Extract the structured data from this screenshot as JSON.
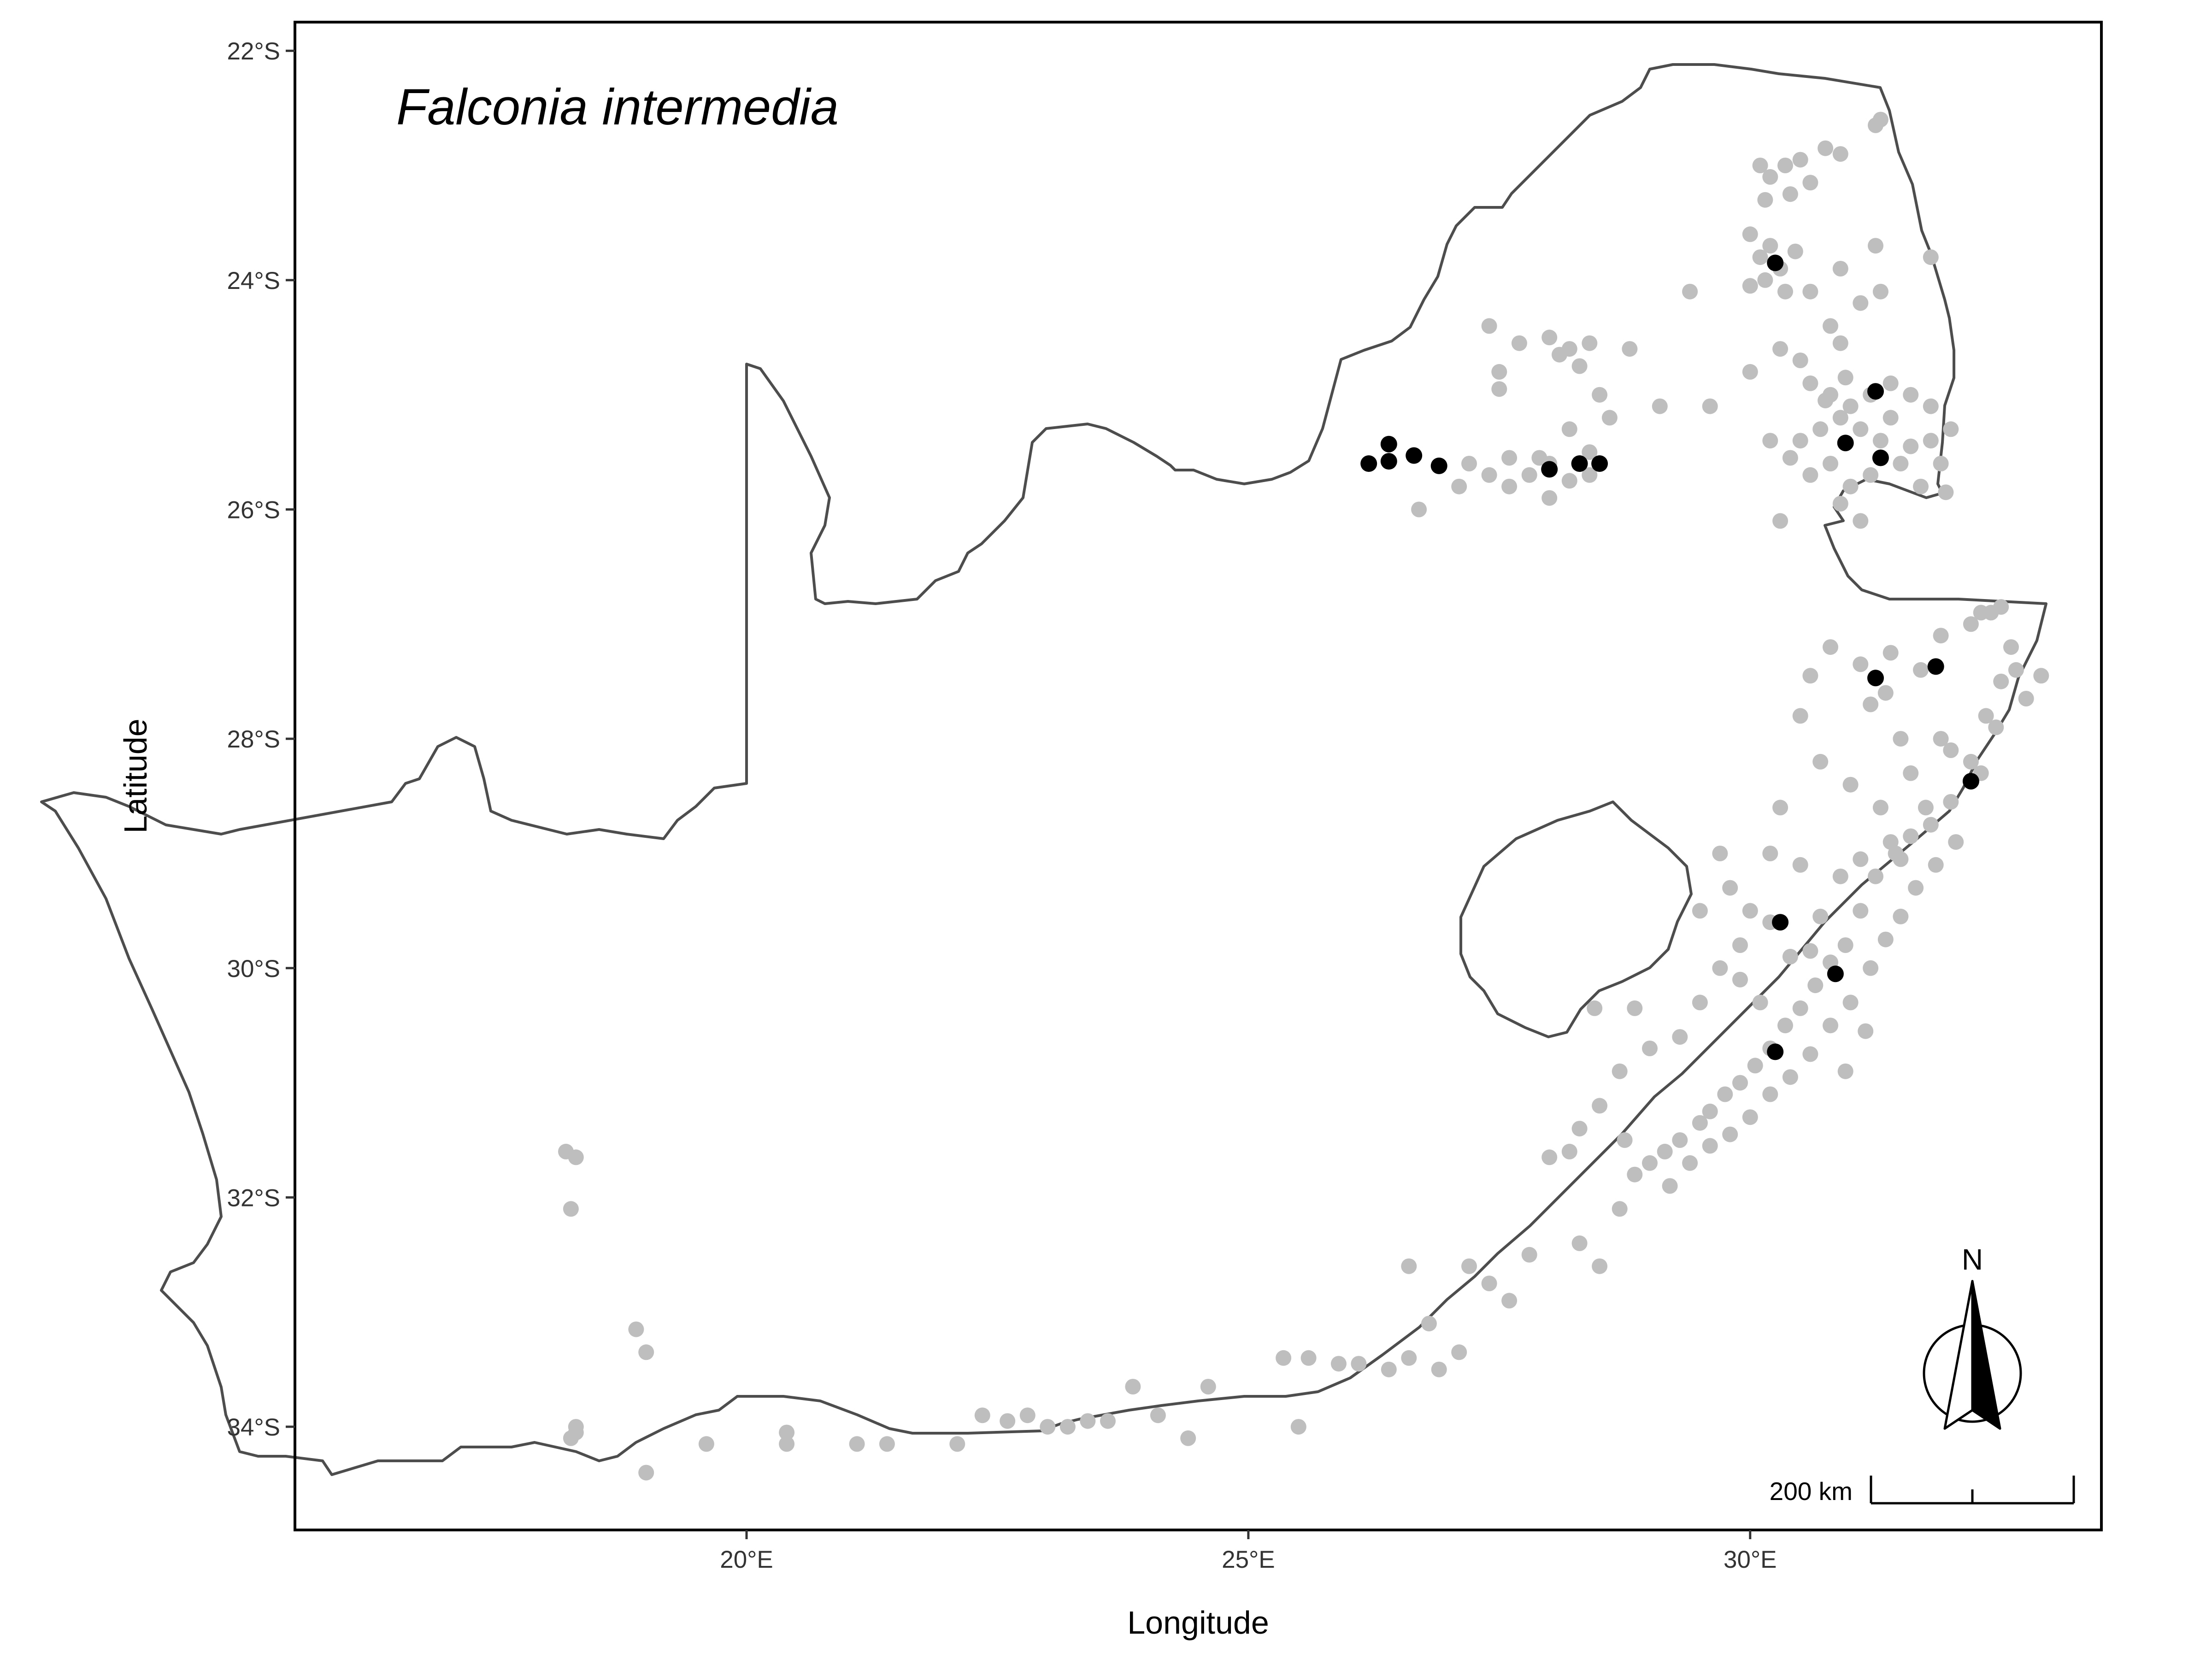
{
  "map": {
    "title": "Falconia intermedia",
    "xlabel": "Longitude",
    "ylabel": "Latitude",
    "x_ticks": [
      {
        "value": 20,
        "label": "20°E"
      },
      {
        "value": 25,
        "label": "25°E"
      },
      {
        "value": 30,
        "label": "30°E"
      }
    ],
    "y_ticks": [
      {
        "value": -22,
        "label": "22°S"
      },
      {
        "value": -24,
        "label": "24°S"
      },
      {
        "value": -26,
        "label": "26°S"
      },
      {
        "value": -28,
        "label": "28°S"
      },
      {
        "value": -30,
        "label": "30°S"
      },
      {
        "value": -32,
        "label": "32°S"
      },
      {
        "value": -34,
        "label": "34°S"
      }
    ],
    "xlim": [
      15.5,
      33.5
    ],
    "ylim": [
      -34.9,
      -21.75
    ],
    "north_arrow_label": "N",
    "scalebar_label": "200 km",
    "colors": {
      "border": "#4d4d4d",
      "background_records": "#bebebe",
      "species_records": "#000000",
      "panel_border": "#000000"
    }
  },
  "chart_data": {
    "type": "scatter",
    "title": "Falconia intermedia",
    "xlabel": "Longitude",
    "ylabel": "Latitude",
    "xlim": [
      15.5,
      33.5
    ],
    "ylim": [
      -34.9,
      -21.75
    ],
    "grid": false,
    "series": [
      {
        "color": "#bebebe",
        "points": [
          [
            18.2,
            -31.6
          ],
          [
            18.3,
            -31.65
          ],
          [
            18.25,
            -32.1
          ],
          [
            18.3,
            -34.0
          ],
          [
            18.25,
            -34.1
          ],
          [
            18.3,
            -34.05
          ],
          [
            18.9,
            -33.15
          ],
          [
            19.0,
            -33.35
          ],
          [
            19.0,
            -34.4
          ],
          [
            19.6,
            -34.15
          ],
          [
            20.4,
            -34.05
          ],
          [
            20.4,
            -34.15
          ],
          [
            21.1,
            -34.15
          ],
          [
            21.4,
            -34.15
          ],
          [
            22.1,
            -34.15
          ],
          [
            22.35,
            -33.9
          ],
          [
            22.6,
            -33.95
          ],
          [
            22.8,
            -33.9
          ],
          [
            23.0,
            -34.0
          ],
          [
            23.2,
            -34.0
          ],
          [
            23.4,
            -33.95
          ],
          [
            23.6,
            -33.95
          ],
          [
            23.85,
            -33.65
          ],
          [
            24.1,
            -33.9
          ],
          [
            24.4,
            -34.1
          ],
          [
            24.6,
            -33.65
          ],
          [
            25.35,
            -33.4
          ],
          [
            25.5,
            -34.0
          ],
          [
            25.6,
            -33.4
          ],
          [
            25.9,
            -33.45
          ],
          [
            26.1,
            -33.45
          ],
          [
            26.4,
            -33.5
          ],
          [
            26.6,
            -33.4
          ],
          [
            26.9,
            -33.5
          ],
          [
            27.1,
            -33.35
          ],
          [
            26.6,
            -32.6
          ],
          [
            26.8,
            -33.1
          ],
          [
            27.2,
            -32.6
          ],
          [
            27.4,
            -32.75
          ],
          [
            27.6,
            -32.9
          ],
          [
            27.8,
            -32.5
          ],
          [
            28.0,
            -31.65
          ],
          [
            28.2,
            -31.6
          ],
          [
            28.3,
            -32.4
          ],
          [
            28.5,
            -32.6
          ],
          [
            28.7,
            -32.1
          ],
          [
            28.85,
            -31.8
          ],
          [
            29.0,
            -31.7
          ],
          [
            29.15,
            -31.6
          ],
          [
            29.3,
            -31.5
          ],
          [
            29.5,
            -31.35
          ],
          [
            29.6,
            -31.25
          ],
          [
            29.75,
            -31.1
          ],
          [
            29.9,
            -31.0
          ],
          [
            30.05,
            -30.85
          ],
          [
            30.2,
            -30.7
          ],
          [
            30.35,
            -30.5
          ],
          [
            30.5,
            -30.35
          ],
          [
            30.65,
            -30.15
          ],
          [
            30.8,
            -29.95
          ],
          [
            30.95,
            -29.8
          ],
          [
            31.1,
            -29.5
          ],
          [
            31.25,
            -29.2
          ],
          [
            31.45,
            -29.0
          ],
          [
            31.6,
            -28.85
          ],
          [
            31.8,
            -28.75
          ],
          [
            32.0,
            -28.55
          ],
          [
            32.2,
            -28.2
          ],
          [
            32.35,
            -27.8
          ],
          [
            32.5,
            -27.5
          ],
          [
            32.6,
            -27.2
          ],
          [
            32.3,
            -26.9
          ],
          [
            31.9,
            -27.1
          ],
          [
            31.7,
            -27.4
          ],
          [
            31.35,
            -27.6
          ],
          [
            31.1,
            -27.35
          ],
          [
            30.8,
            -27.2
          ],
          [
            30.6,
            -27.45
          ],
          [
            30.5,
            -27.8
          ],
          [
            30.7,
            -28.2
          ],
          [
            31.0,
            -28.4
          ],
          [
            31.3,
            -28.6
          ],
          [
            31.6,
            -28.3
          ],
          [
            31.9,
            -28.0
          ],
          [
            30.3,
            -28.6
          ],
          [
            30.2,
            -29.0
          ],
          [
            29.7,
            -29.0
          ],
          [
            29.8,
            -29.3
          ],
          [
            30.0,
            -29.5
          ],
          [
            29.9,
            -29.8
          ],
          [
            29.7,
            -30.0
          ],
          [
            29.5,
            -30.3
          ],
          [
            29.3,
            -30.6
          ],
          [
            29.0,
            -30.7
          ],
          [
            28.7,
            -30.9
          ],
          [
            28.5,
            -31.2
          ],
          [
            28.3,
            -31.4
          ],
          [
            28.75,
            -31.5
          ],
          [
            29.2,
            -31.9
          ],
          [
            29.4,
            -31.7
          ],
          [
            29.6,
            -31.55
          ],
          [
            29.8,
            -31.45
          ],
          [
            30.0,
            -31.3
          ],
          [
            30.2,
            -31.1
          ],
          [
            30.4,
            -30.95
          ],
          [
            30.6,
            -30.75
          ],
          [
            30.8,
            -30.5
          ],
          [
            31.0,
            -30.3
          ],
          [
            31.2,
            -30.0
          ],
          [
            31.35,
            -29.75
          ],
          [
            31.5,
            -29.55
          ],
          [
            31.65,
            -29.3
          ],
          [
            31.85,
            -29.1
          ],
          [
            32.05,
            -28.9
          ],
          [
            28.45,
            -30.35
          ],
          [
            28.85,
            -30.35
          ],
          [
            30.5,
            -29.1
          ],
          [
            30.7,
            -29.55
          ],
          [
            30.9,
            -29.2
          ],
          [
            30.4,
            -29.9
          ],
          [
            30.2,
            -29.6
          ],
          [
            30.6,
            -29.85
          ],
          [
            31.1,
            -29.05
          ],
          [
            31.4,
            -28.9
          ],
          [
            29.5,
            -29.5
          ],
          [
            29.9,
            -30.1
          ],
          [
            30.1,
            -30.3
          ],
          [
            31.15,
            -30.55
          ],
          [
            30.95,
            -30.9
          ],
          [
            31.2,
            -27.7
          ],
          [
            31.5,
            -28.0
          ],
          [
            31.4,
            -27.25
          ],
          [
            32.2,
            -27.0
          ],
          [
            32.65,
            -27.4
          ],
          [
            32.45,
            -27.9
          ],
          [
            32.3,
            -28.3
          ],
          [
            32.0,
            -28.1
          ],
          [
            31.75,
            -28.6
          ],
          [
            31.5,
            -29.05
          ],
          [
            32.4,
            -26.9
          ],
          [
            32.5,
            -26.85
          ],
          [
            32.9,
            -27.45
          ],
          [
            32.75,
            -27.65
          ],
          [
            30.1,
            -23.0
          ],
          [
            30.2,
            -23.1
          ],
          [
            30.35,
            -23.0
          ],
          [
            30.5,
            -22.95
          ],
          [
            30.6,
            -23.15
          ],
          [
            30.4,
            -23.25
          ],
          [
            30.15,
            -23.3
          ],
          [
            30.75,
            -22.85
          ],
          [
            30.9,
            -22.9
          ],
          [
            31.25,
            -22.65
          ],
          [
            31.3,
            -22.6
          ],
          [
            30.0,
            -23.6
          ],
          [
            30.1,
            -23.8
          ],
          [
            30.2,
            -23.7
          ],
          [
            30.3,
            -23.9
          ],
          [
            30.15,
            -24.0
          ],
          [
            30.35,
            -24.1
          ],
          [
            30.0,
            -24.05
          ],
          [
            30.45,
            -23.75
          ],
          [
            30.6,
            -24.1
          ],
          [
            30.9,
            -23.9
          ],
          [
            31.1,
            -24.2
          ],
          [
            31.3,
            -24.1
          ],
          [
            31.25,
            -23.7
          ],
          [
            31.8,
            -23.8
          ],
          [
            29.4,
            -24.1
          ],
          [
            30.3,
            -24.6
          ],
          [
            30.5,
            -24.7
          ],
          [
            30.8,
            -24.4
          ],
          [
            30.9,
            -24.55
          ],
          [
            30.6,
            -24.9
          ],
          [
            30.8,
            -25.0
          ],
          [
            31.0,
            -25.1
          ],
          [
            31.2,
            -25.0
          ],
          [
            31.4,
            -24.9
          ],
          [
            31.6,
            -25.0
          ],
          [
            31.8,
            -25.1
          ],
          [
            32.0,
            -25.3
          ],
          [
            31.9,
            -25.6
          ],
          [
            31.7,
            -25.8
          ],
          [
            31.5,
            -25.6
          ],
          [
            31.3,
            -25.4
          ],
          [
            31.1,
            -25.3
          ],
          [
            30.9,
            -25.2
          ],
          [
            30.7,
            -25.3
          ],
          [
            30.5,
            -25.4
          ],
          [
            30.4,
            -25.55
          ],
          [
            30.6,
            -25.7
          ],
          [
            30.8,
            -25.6
          ],
          [
            31.0,
            -25.8
          ],
          [
            31.2,
            -25.7
          ],
          [
            30.9,
            -25.95
          ],
          [
            31.1,
            -26.1
          ],
          [
            30.3,
            -26.1
          ],
          [
            30.2,
            -25.4
          ],
          [
            30.0,
            -24.8
          ],
          [
            29.6,
            -25.1
          ],
          [
            31.6,
            -25.45
          ],
          [
            31.8,
            -25.4
          ],
          [
            31.95,
            -25.85
          ],
          [
            31.4,
            -25.2
          ],
          [
            30.75,
            -25.05
          ],
          [
            30.95,
            -24.85
          ],
          [
            27.4,
            -24.4
          ],
          [
            27.5,
            -24.8
          ],
          [
            27.5,
            -24.95
          ],
          [
            27.7,
            -24.55
          ],
          [
            28.0,
            -24.5
          ],
          [
            28.2,
            -24.6
          ],
          [
            28.4,
            -24.55
          ],
          [
            28.1,
            -24.65
          ],
          [
            28.3,
            -24.75
          ],
          [
            28.8,
            -24.6
          ],
          [
            28.5,
            -25.0
          ],
          [
            28.6,
            -25.2
          ],
          [
            29.1,
            -25.1
          ],
          [
            28.2,
            -25.3
          ],
          [
            28.4,
            -25.5
          ],
          [
            27.2,
            -25.6
          ],
          [
            27.4,
            -25.7
          ],
          [
            27.6,
            -25.8
          ],
          [
            27.8,
            -25.7
          ],
          [
            28.0,
            -25.6
          ],
          [
            28.2,
            -25.75
          ],
          [
            28.4,
            -25.7
          ],
          [
            27.9,
            -25.55
          ],
          [
            28.0,
            -25.9
          ],
          [
            27.1,
            -25.8
          ],
          [
            26.7,
            -26.0
          ],
          [
            27.6,
            -25.55
          ]
        ]
      },
      {
        "color": "#000000",
        "points": [
          [
            26.2,
            -25.6
          ],
          [
            26.4,
            -25.43
          ],
          [
            26.4,
            -25.58
          ],
          [
            26.65,
            -25.53
          ],
          [
            26.9,
            -25.62
          ],
          [
            28.0,
            -25.65
          ],
          [
            28.3,
            -25.6
          ],
          [
            28.5,
            -25.6
          ],
          [
            30.25,
            -23.85
          ],
          [
            31.25,
            -24.97
          ],
          [
            30.95,
            -25.42
          ],
          [
            31.3,
            -25.55
          ],
          [
            31.25,
            -27.47
          ],
          [
            31.85,
            -27.37
          ],
          [
            32.2,
            -28.37
          ],
          [
            30.3,
            -29.6
          ],
          [
            30.85,
            -30.05
          ],
          [
            30.25,
            -30.73
          ]
        ]
      }
    ]
  }
}
